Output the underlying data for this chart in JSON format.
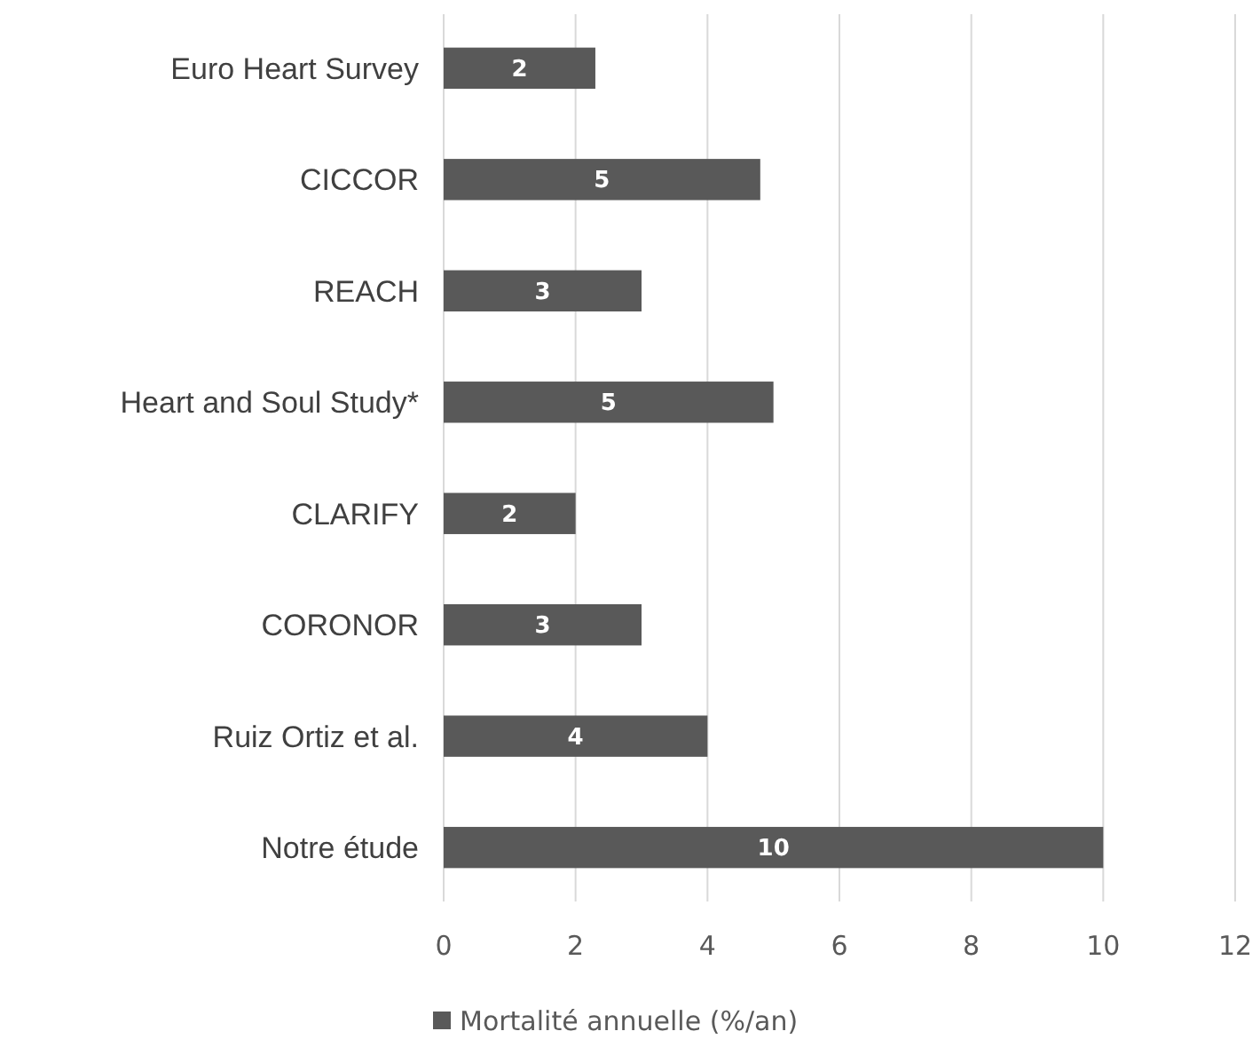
{
  "chart_data": {
    "type": "bar",
    "orientation": "horizontal",
    "categories": [
      "Euro Heart Survey",
      "CICCOR",
      "REACH",
      "Heart and Soul Study*",
      "CLARIFY",
      "CORONOR",
      "Ruiz Ortiz et al.",
      "Notre étude"
    ],
    "series": [
      {
        "name": "Mortalité annuelle (%/an)",
        "color": "#595959",
        "values": [
          2.3,
          4.8,
          3.0,
          5.0,
          2.0,
          3.0,
          4.0,
          10.0
        ],
        "value_labels": [
          "2",
          "5",
          "3",
          "5",
          "2",
          "3",
          "4",
          "10"
        ]
      }
    ],
    "xlim": [
      0,
      12
    ],
    "xticks": [
      0,
      2,
      4,
      6,
      8,
      10,
      12
    ],
    "grid": "x",
    "legend": "bottom"
  }
}
